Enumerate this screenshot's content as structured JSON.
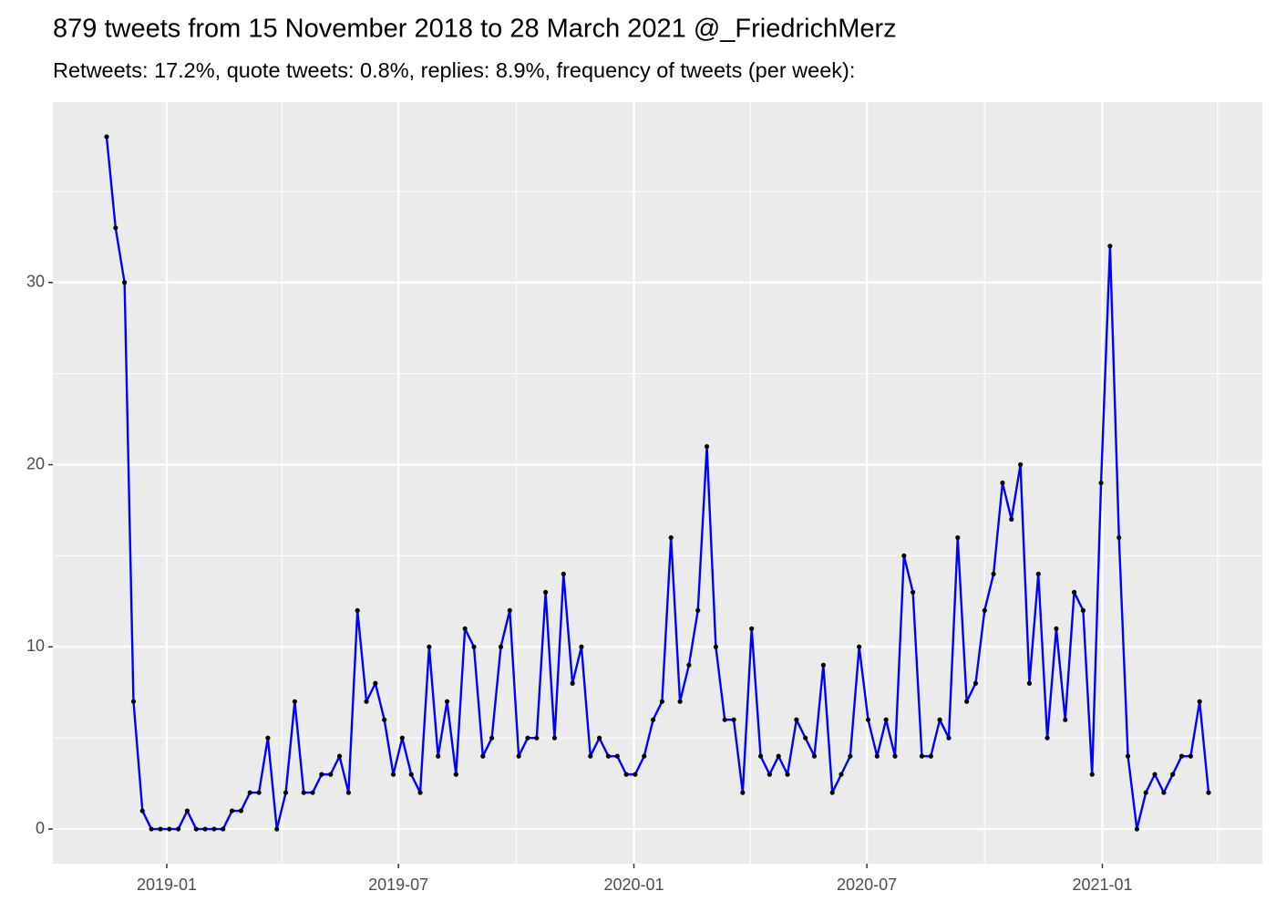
{
  "chart_data": {
    "type": "line",
    "title": "879 tweets from 15 November 2018 to 28 March 2021 @_FriedrichMerz",
    "subtitle": "Retweets: 17.2%, quote tweets: 0.8%, replies: 8.9%, frequency of tweets (per week):",
    "x": [
      "2018-11-15",
      "2018-11-22",
      "2018-11-29",
      "2018-12-06",
      "2018-12-13",
      "2018-12-20",
      "2018-12-27",
      "2019-01-03",
      "2019-01-10",
      "2019-01-17",
      "2019-01-24",
      "2019-01-31",
      "2019-02-07",
      "2019-02-14",
      "2019-02-21",
      "2019-02-28",
      "2019-03-07",
      "2019-03-14",
      "2019-03-21",
      "2019-03-28",
      "2019-04-04",
      "2019-04-11",
      "2019-04-18",
      "2019-04-25",
      "2019-05-02",
      "2019-05-09",
      "2019-05-16",
      "2019-05-23",
      "2019-05-30",
      "2019-06-06",
      "2019-06-13",
      "2019-06-20",
      "2019-06-27",
      "2019-07-04",
      "2019-07-11",
      "2019-07-18",
      "2019-07-25",
      "2019-08-01",
      "2019-08-08",
      "2019-08-15",
      "2019-08-22",
      "2019-08-29",
      "2019-09-05",
      "2019-09-12",
      "2019-09-19",
      "2019-09-26",
      "2019-10-03",
      "2019-10-10",
      "2019-10-17",
      "2019-10-24",
      "2019-10-31",
      "2019-11-07",
      "2019-11-14",
      "2019-11-21",
      "2019-11-28",
      "2019-12-05",
      "2019-12-12",
      "2019-12-19",
      "2019-12-26",
      "2020-01-02",
      "2020-01-09",
      "2020-01-16",
      "2020-01-23",
      "2020-01-30",
      "2020-02-06",
      "2020-02-13",
      "2020-02-20",
      "2020-02-27",
      "2020-03-05",
      "2020-03-12",
      "2020-03-19",
      "2020-03-26",
      "2020-04-02",
      "2020-04-09",
      "2020-04-16",
      "2020-04-23",
      "2020-04-30",
      "2020-05-07",
      "2020-05-14",
      "2020-05-21",
      "2020-05-28",
      "2020-06-04",
      "2020-06-11",
      "2020-06-18",
      "2020-06-25",
      "2020-07-02",
      "2020-07-09",
      "2020-07-16",
      "2020-07-23",
      "2020-07-30",
      "2020-08-06",
      "2020-08-13",
      "2020-08-20",
      "2020-08-27",
      "2020-09-03",
      "2020-09-10",
      "2020-09-17",
      "2020-09-24",
      "2020-10-01",
      "2020-10-08",
      "2020-10-15",
      "2020-10-22",
      "2020-10-29",
      "2020-11-05",
      "2020-11-12",
      "2020-11-19",
      "2020-11-26",
      "2020-12-03",
      "2020-12-10",
      "2020-12-17",
      "2020-12-24",
      "2020-12-31",
      "2021-01-07",
      "2021-01-14",
      "2021-01-21",
      "2021-01-28",
      "2021-02-04",
      "2021-02-11",
      "2021-02-18",
      "2021-02-25",
      "2021-03-04",
      "2021-03-11",
      "2021-03-18",
      "2021-03-25"
    ],
    "values": [
      38,
      33,
      30,
      7,
      1,
      0,
      0,
      0,
      0,
      1,
      0,
      0,
      0,
      0,
      1,
      1,
      2,
      2,
      5,
      0,
      2,
      7,
      2,
      2,
      3,
      3,
      4,
      2,
      12,
      7,
      8,
      6,
      3,
      5,
      3,
      2,
      10,
      4,
      7,
      3,
      11,
      10,
      4,
      5,
      10,
      12,
      4,
      5,
      5,
      13,
      5,
      14,
      8,
      10,
      4,
      5,
      4,
      4,
      3,
      3,
      4,
      6,
      7,
      16,
      7,
      9,
      12,
      21,
      10,
      6,
      6,
      2,
      11,
      4,
      3,
      4,
      3,
      6,
      5,
      4,
      9,
      2,
      3,
      4,
      10,
      6,
      4,
      6,
      4,
      15,
      13,
      4,
      4,
      6,
      5,
      16,
      7,
      8,
      12,
      14,
      19,
      17,
      20,
      8,
      14,
      5,
      11,
      6,
      13,
      12,
      3,
      19,
      32,
      16,
      4,
      0,
      2,
      3,
      2,
      3,
      4,
      4,
      7,
      2
    ],
    "color": "#0000ff",
    "point_color": "#000000",
    "panel_color": "#ebebeb",
    "grid": true,
    "xlim": [
      "2018-10-04",
      "2021-05-06"
    ],
    "xticks": [
      {
        "value": "2019-01-01",
        "label": "2019-01"
      },
      {
        "value": "2019-07-01",
        "label": "2019-07"
      },
      {
        "value": "2020-01-01",
        "label": "2020-01"
      },
      {
        "value": "2020-07-01",
        "label": "2020-07"
      },
      {
        "value": "2021-01-01",
        "label": "2021-01"
      }
    ],
    "xminor": [
      "2019-04-01",
      "2019-10-01",
      "2020-04-01",
      "2020-10-01",
      "2021-04-01"
    ],
    "ylim": [
      -1.9,
      39.9
    ],
    "yticks": [
      0,
      10,
      20,
      30
    ],
    "yminor": [
      5,
      15,
      25,
      35
    ]
  }
}
